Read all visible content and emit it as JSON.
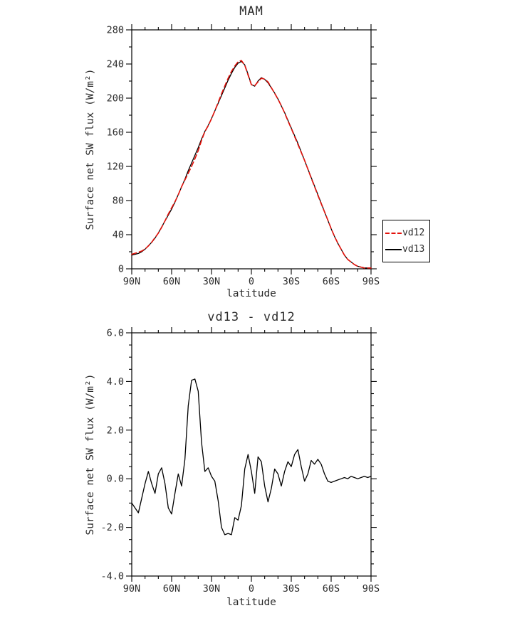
{
  "page": {
    "background": "#ffffff"
  },
  "legend": {
    "position": "right",
    "entries": [
      "vd12",
      "vd13"
    ]
  },
  "charts": [
    {
      "id": "top-chart",
      "type": "line",
      "title": "MAM",
      "xlabel": "latitude",
      "ylabel": "Surface net SW flux (W/m²)",
      "xlim": [
        90,
        -90
      ],
      "ylim": [
        0,
        280
      ],
      "grid": false,
      "xticks": {
        "values": [
          90,
          60,
          30,
          0,
          -30,
          -60,
          -90
        ],
        "labels": [
          "90N",
          "60N",
          "30N",
          "0",
          "30S",
          "60S",
          "90S"
        ],
        "minor_step": 10
      },
      "yticks": {
        "values": [
          280,
          240,
          200,
          160,
          120,
          80,
          40,
          0
        ],
        "labels": [
          "280",
          "240",
          "200",
          "160",
          "120",
          "80",
          "40",
          "0"
        ],
        "minor_step": 20
      },
      "x": [
        90,
        87.5,
        85,
        82.5,
        80,
        77.5,
        75,
        72.5,
        70,
        67.5,
        65,
        62.5,
        60,
        57.5,
        55,
        52.5,
        50,
        47.5,
        45,
        42.5,
        40,
        37.5,
        35,
        32.5,
        30,
        27.5,
        25,
        22.5,
        20,
        17.5,
        15,
        12.5,
        10,
        7.5,
        5,
        2.5,
        0,
        -2.5,
        -5,
        -7.5,
        -10,
        -12.5,
        -15,
        -17.5,
        -20,
        -22.5,
        -25,
        -27.5,
        -30,
        -32.5,
        -35,
        -37.5,
        -40,
        -42.5,
        -45,
        -47.5,
        -50,
        -52.5,
        -55,
        -57.5,
        -60,
        -62.5,
        -65,
        -67.5,
        -70,
        -72.5,
        -75,
        -77.5,
        -80,
        -82.5,
        -85,
        -87.5,
        -90
      ],
      "series": [
        {
          "name": "vd12",
          "color": "#e3120b",
          "dash": "7 4",
          "values": [
            17,
            18.2,
            19.4,
            20.8,
            23.2,
            26.7,
            31.2,
            36.6,
            41.8,
            48.6,
            56.2,
            64.2,
            71.5,
            78.6,
            86.8,
            96.3,
            104.2,
            112,
            120,
            128.9,
            138.4,
            150.5,
            160.7,
            167.6,
            175.9,
            185.1,
            194.9,
            205,
            214.3,
            223.3,
            231.3,
            237.6,
            242.7,
            244.1,
            238.6,
            227,
            215.7,
            214.6,
            219.1,
            223.3,
            222.3,
            219,
            212.4,
            205.6,
            198.8,
            191.3,
            182.7,
            173.3,
            164.5,
            155,
            145.8,
            136.5,
            127.1,
            116.8,
            106.3,
            96.4,
            86.2,
            76.4,
            66.8,
            57.1,
            47.2,
            38.1,
            30.1,
            23,
            16,
            11,
            7.9,
            5,
            3,
            2,
            0.9,
            1,
            0.9
          ]
        },
        {
          "name": "vd13",
          "color": "#000000",
          "dash": null,
          "values": [
            16,
            17,
            18,
            20,
            23,
            27,
            31,
            36,
            42,
            49,
            56,
            63,
            70,
            78,
            87,
            96,
            105,
            115,
            124,
            133,
            142,
            152,
            161,
            168,
            176,
            185,
            194,
            203,
            212,
            221,
            229,
            236,
            241,
            243,
            239,
            228,
            216,
            214,
            220,
            224,
            222,
            218,
            212,
            206,
            199,
            191,
            183,
            174,
            165,
            156,
            147,
            137,
            127,
            117,
            107,
            97,
            87,
            77,
            67,
            57,
            47,
            38,
            30,
            23,
            16,
            11,
            8,
            5,
            3,
            2,
            1,
            1,
            1
          ]
        }
      ]
    },
    {
      "id": "bottom-chart",
      "type": "line",
      "title": "vd13 - vd12",
      "xlabel": "latitude",
      "ylabel": "Surface net SW flux (W/m²)",
      "xlim": [
        90,
        -90
      ],
      "ylim": [
        -4,
        6
      ],
      "grid": false,
      "xticks": {
        "values": [
          90,
          60,
          30,
          0,
          -30,
          -60,
          -90
        ],
        "labels": [
          "90N",
          "60N",
          "30N",
          "0",
          "30S",
          "60S",
          "90S"
        ],
        "minor_step": 10
      },
      "yticks": {
        "values": [
          6,
          4,
          2,
          0,
          -2,
          -4
        ],
        "labels": [
          "6.0",
          "4.0",
          "2.0",
          "0.0",
          "-2.0",
          "-4.0"
        ],
        "minor_step": 0.5
      },
      "x": [
        90,
        87.5,
        85,
        82.5,
        80,
        77.5,
        75,
        72.5,
        70,
        67.5,
        65,
        62.5,
        60,
        57.5,
        55,
        52.5,
        50,
        47.5,
        45,
        42.5,
        40,
        37.5,
        35,
        32.5,
        30,
        27.5,
        25,
        22.5,
        20,
        17.5,
        15,
        12.5,
        10,
        7.5,
        5,
        2.5,
        0,
        -2.5,
        -5,
        -7.5,
        -10,
        -12.5,
        -15,
        -17.5,
        -20,
        -22.5,
        -25,
        -27.5,
        -30,
        -32.5,
        -35,
        -37.5,
        -40,
        -42.5,
        -45,
        -47.5,
        -50,
        -52.5,
        -55,
        -57.5,
        -60,
        -62.5,
        -65,
        -67.5,
        -70,
        -72.5,
        -75,
        -77.5,
        -80,
        -82.5,
        -85,
        -87.5,
        -90
      ],
      "series": [
        {
          "name": "vd13 - vd12",
          "color": "#000000",
          "dash": null,
          "values": [
            -1.0,
            -1.2,
            -1.4,
            -0.8,
            -0.2,
            0.3,
            -0.2,
            -0.6,
            0.2,
            0.45,
            -0.2,
            -1.2,
            -1.45,
            -0.6,
            0.2,
            -0.3,
            0.8,
            3.0,
            4.05,
            4.1,
            3.6,
            1.5,
            0.3,
            0.45,
            0.1,
            -0.1,
            -0.9,
            -2.0,
            -2.3,
            -2.25,
            -2.3,
            -1.6,
            -1.7,
            -1.1,
            0.4,
            1.0,
            0.3,
            -0.6,
            0.9,
            0.7,
            -0.3,
            -0.95,
            -0.4,
            0.4,
            0.2,
            -0.3,
            0.3,
            0.7,
            0.5,
            1.0,
            1.2,
            0.5,
            -0.1,
            0.2,
            0.75,
            0.6,
            0.8,
            0.6,
            0.2,
            -0.1,
            -0.15,
            -0.1,
            -0.05,
            0.0,
            0.05,
            0.0,
            0.1,
            0.05,
            0.0,
            0.05,
            0.1,
            0.05,
            0.1
          ]
        }
      ]
    }
  ]
}
